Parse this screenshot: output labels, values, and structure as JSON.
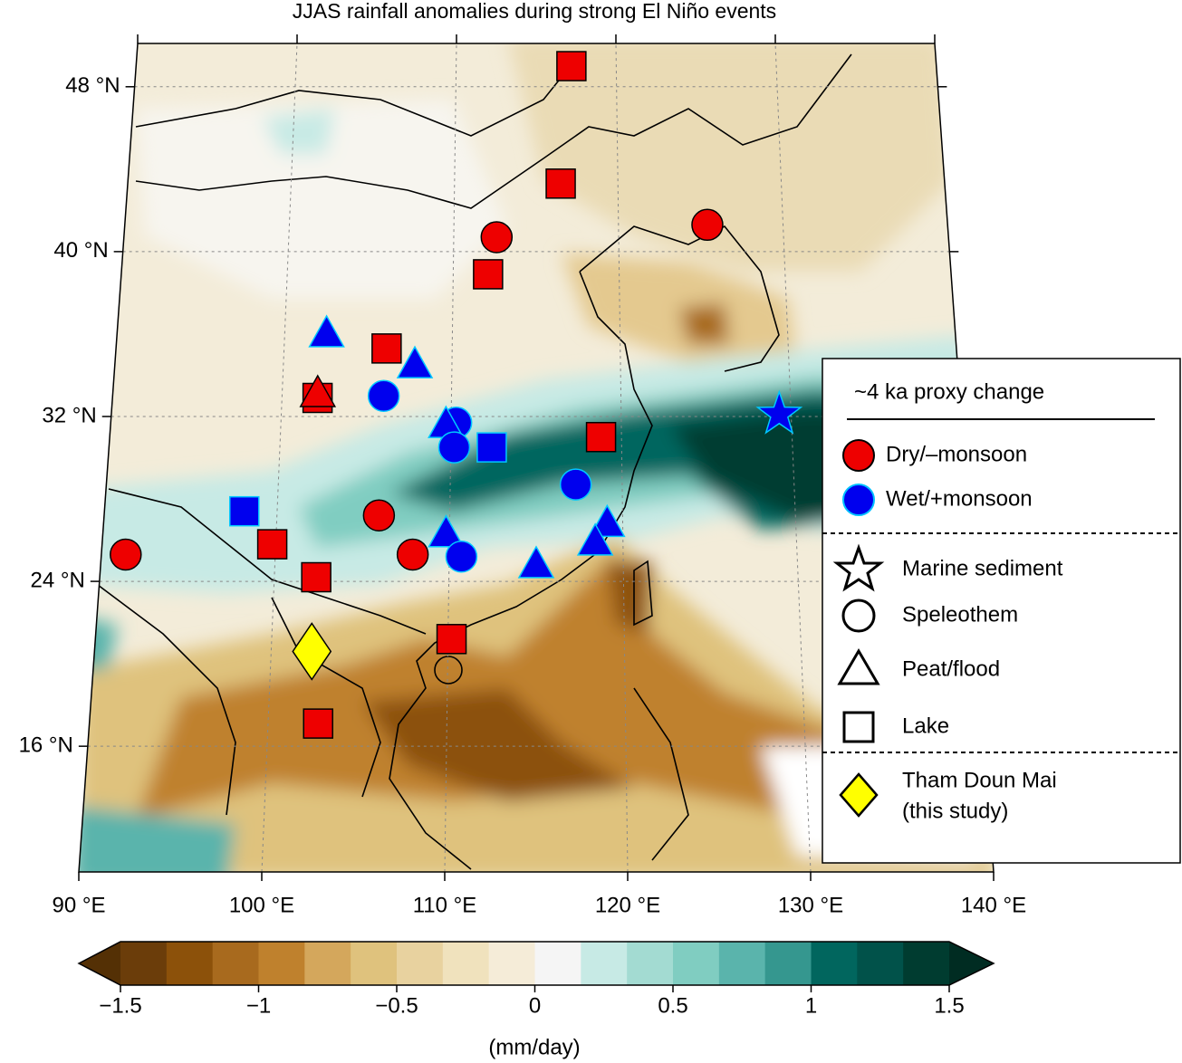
{
  "chart_data": {
    "type": "map",
    "title": "JJAS rainfall anomalies during strong El Niño events",
    "xlim": [
      90,
      140
    ],
    "ylim": [
      9.9,
      50.1
    ],
    "xticks": [
      {
        "value": 90,
        "label": "90 °E"
      },
      {
        "value": 100,
        "label": "100 °E"
      },
      {
        "value": 110,
        "label": "110 °E"
      },
      {
        "value": 120,
        "label": "120 °E"
      },
      {
        "value": 130,
        "label": "130 °E"
      },
      {
        "value": 140,
        "label": "140 °E"
      }
    ],
    "yticks": [
      {
        "value": 16,
        "label": "16 °N"
      },
      {
        "value": 24,
        "label": "24 °N"
      },
      {
        "value": 32,
        "label": "32 °N"
      },
      {
        "value": 40,
        "label": "40 °N"
      },
      {
        "value": 48,
        "label": "48 °N"
      }
    ],
    "grid": true,
    "colorbar": {
      "label": "(mm/day)",
      "lim": [
        -1.5,
        1.5
      ],
      "ticks": [
        {
          "value": -1.5,
          "label": "−1.5"
        },
        {
          "value": -1,
          "label": "−1"
        },
        {
          "value": -0.5,
          "label": "−0.5"
        },
        0,
        0.5,
        1,
        1.5
      ],
      "colors": [
        "#543005",
        "#6b3d0a",
        "#8c510a",
        "#a86a1e",
        "#bf812d",
        "#d4a75c",
        "#dfc27d",
        "#e8d29f",
        "#f0e2bd",
        "#f5ecd8",
        "#f5f5f5",
        "#c7eae5",
        "#a3dbd2",
        "#80cdc1",
        "#5ab4ac",
        "#35978f",
        "#01665e",
        "#01524a",
        "#003c30",
        "#002c22"
      ]
    },
    "legend": {
      "title": "~4 ka proxy change",
      "corner": "right",
      "items": [
        "Dry/–monsoon",
        "Wet/+monsoon",
        "Marine sediment",
        "Speleothem",
        "Peat/flood",
        "Lake",
        "Tham Doun Mai",
        "(this study)"
      ]
    },
    "sites": [
      {
        "lon": 117.2,
        "lat": 49.0,
        "shape": "square",
        "color": "#ee0000"
      },
      {
        "lon": 116.5,
        "lat": 43.3,
        "shape": "square",
        "color": "#ee0000"
      },
      {
        "lon": 112.6,
        "lat": 40.7,
        "shape": "circle",
        "color": "#ee0000"
      },
      {
        "lon": 112.1,
        "lat": 38.9,
        "shape": "square",
        "color": "#ee0000"
      },
      {
        "lon": 125.4,
        "lat": 41.3,
        "shape": "circle",
        "color": "#ee0000"
      },
      {
        "lon": 102.5,
        "lat": 36.0,
        "shape": "triangle",
        "color": "#0000ee"
      },
      {
        "lon": 106.1,
        "lat": 35.3,
        "shape": "square",
        "color": "#ee0000"
      },
      {
        "lon": 107.8,
        "lat": 34.5,
        "shape": "triangle",
        "color": "#0000ee"
      },
      {
        "lon": 102.1,
        "lat": 32.9,
        "shape": "square",
        "color": "#ee0000"
      },
      {
        "lon": 102.1,
        "lat": 33.1,
        "shape": "triangle",
        "color": "#ee0000"
      },
      {
        "lon": 106.0,
        "lat": 33.0,
        "shape": "circle",
        "color": "#0000ee"
      },
      {
        "lon": 110.3,
        "lat": 31.7,
        "shape": "circle",
        "color": "#0000ee"
      },
      {
        "lon": 109.7,
        "lat": 31.6,
        "shape": "triangle",
        "color": "#0000ee"
      },
      {
        "lon": 110.2,
        "lat": 30.5,
        "shape": "circle",
        "color": "#0000ee"
      },
      {
        "lon": 112.4,
        "lat": 30.5,
        "shape": "square",
        "color": "#0000ee"
      },
      {
        "lon": 118.8,
        "lat": 31.0,
        "shape": "square",
        "color": "#ee0000"
      },
      {
        "lon": 129.3,
        "lat": 32.1,
        "shape": "star",
        "color": "#0000ee"
      },
      {
        "lon": 117.3,
        "lat": 28.7,
        "shape": "circle",
        "color": "#0000ee"
      },
      {
        "lon": 98.1,
        "lat": 27.4,
        "shape": "square",
        "color": "#0000ee"
      },
      {
        "lon": 105.9,
        "lat": 27.2,
        "shape": "circle",
        "color": "#ee0000"
      },
      {
        "lon": 99.8,
        "lat": 25.8,
        "shape": "square",
        "color": "#ee0000"
      },
      {
        "lon": 91.4,
        "lat": 25.3,
        "shape": "circle",
        "color": "#ee0000"
      },
      {
        "lon": 109.8,
        "lat": 26.3,
        "shape": "triangle",
        "color": "#0000ee"
      },
      {
        "lon": 110.7,
        "lat": 25.2,
        "shape": "circle",
        "color": "#0000ee"
      },
      {
        "lon": 107.9,
        "lat": 25.3,
        "shape": "circle",
        "color": "#ee0000"
      },
      {
        "lon": 119.1,
        "lat": 26.8,
        "shape": "triangle",
        "color": "#0000ee"
      },
      {
        "lon": 118.4,
        "lat": 25.9,
        "shape": "triangle",
        "color": "#0000ee"
      },
      {
        "lon": 115.0,
        "lat": 24.8,
        "shape": "triangle",
        "color": "#0000ee"
      },
      {
        "lon": 102.4,
        "lat": 24.2,
        "shape": "square",
        "color": "#ee0000"
      },
      {
        "lon": 110.2,
        "lat": 21.2,
        "shape": "square",
        "color": "#ee0000"
      },
      {
        "lon": 102.3,
        "lat": 20.6,
        "shape": "diamond",
        "color": "#ffff00"
      },
      {
        "lon": 102.8,
        "lat": 17.1,
        "shape": "square",
        "color": "#ee0000"
      }
    ]
  }
}
